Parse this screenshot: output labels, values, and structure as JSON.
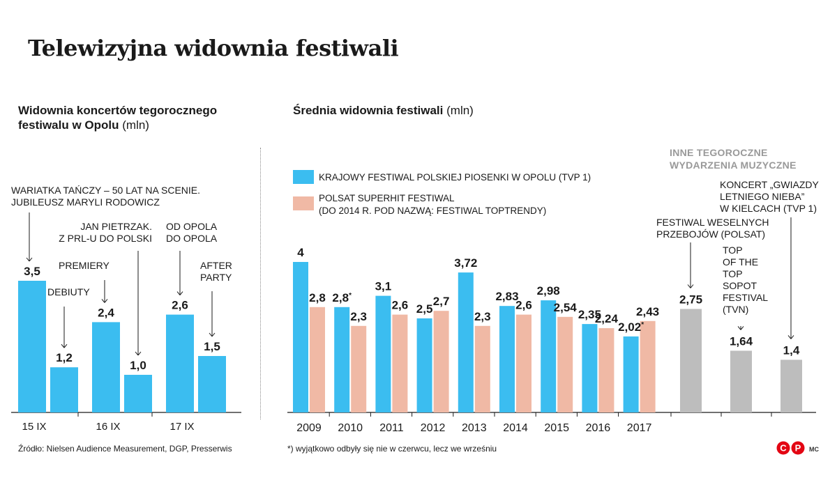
{
  "title": "Telewizyjna widownia festiwali",
  "left_subtitle": {
    "bold": "Widownia koncertów tegorocznego festiwalu w Opolu",
    "unit": "(mln)"
  },
  "right_subtitle": {
    "bold": "Średnia widownia festiwali",
    "unit": "(mln)"
  },
  "legend": [
    {
      "label": [
        "KRAJOWY FESTIWAL POLSKIEJ PIOSENKI W OPOLU (TVP 1)"
      ],
      "color": "#3bbdf0"
    },
    {
      "label": [
        "POLSAT SUPERHIT FESTIWAL",
        "(DO 2014 R. POD NAZWĄ: FESTIWAL TOPTRENDY)"
      ],
      "color": "#f0b9a5"
    }
  ],
  "other_events_title": [
    "INNE TEGOROCZNE",
    "WYDARZENIA MUZYCZNE"
  ],
  "source": "Źródło: Nielsen Audience Measurement, DGP, Presserwis",
  "footnote": "*) wyjątkowo odbyły się nie w czerwcu, lecz we wrześniu",
  "logo": {
    "left": "C",
    "right": "P"
  },
  "credit": "MC",
  "colors": {
    "blue": "#3bbdf0",
    "salmon": "#f0b9a5",
    "gray": "#bdbdbd"
  },
  "chart_data": [
    {
      "type": "bar",
      "title": "Widownia koncertów tegorocznego festiwalu w Opolu",
      "unit": "mln",
      "ylim": [
        0,
        4
      ],
      "categories": [
        "15 IX",
        "16 IX",
        "17 IX"
      ],
      "bars": [
        {
          "category": "15 IX",
          "value": 3.5,
          "label": "3,5",
          "annotation": [
            "WARIATKA TAŃCZY – 50 LAT NA SCENIE.",
            "JUBILEUSZ MARYLI RODOWICZ"
          ]
        },
        {
          "category": "15 IX",
          "value": 1.2,
          "label": "1,2",
          "annotation": [
            "DEBIUTY"
          ]
        },
        {
          "category": "16 IX",
          "value": 2.4,
          "label": "2,4",
          "annotation": [
            "PREMIERY"
          ]
        },
        {
          "category": "16 IX",
          "value": 1.0,
          "label": "1,0",
          "annotation": [
            "JAN PIETRZAK.",
            "Z PRL-U DO POLSKI"
          ]
        },
        {
          "category": "17 IX",
          "value": 2.6,
          "label": "2,6",
          "annotation": [
            "OD OPOLA",
            "DO OPOLA"
          ]
        },
        {
          "category": "17 IX",
          "value": 1.5,
          "label": "1,5",
          "annotation": [
            "AFTER",
            "PARTY"
          ]
        }
      ]
    },
    {
      "type": "bar",
      "title": "Średnia widownia festiwali",
      "unit": "mln",
      "ylim": [
        0,
        4
      ],
      "categories": [
        "2009",
        "2010",
        "2011",
        "2012",
        "2013",
        "2014",
        "2015",
        "2016",
        "2017"
      ],
      "series": [
        {
          "name": "KRAJOWY FESTIWAL POLSKIEJ PIOSENKI W OPOLU (TVP 1)",
          "color": "#3bbdf0",
          "values": [
            4,
            2.8,
            3.1,
            2.5,
            3.72,
            2.83,
            2.98,
            2.35,
            2.02
          ],
          "labels": [
            "4",
            "2,8*",
            "3,1",
            "2,5",
            "3,72",
            "2,83",
            "2,98",
            "2,35",
            "2,02*"
          ]
        },
        {
          "name": "POLSAT SUPERHIT FESTIWAL",
          "color": "#f0b9a5",
          "values": [
            2.8,
            2.3,
            2.6,
            2.7,
            2.3,
            2.6,
            2.54,
            2.24,
            2.43
          ],
          "labels": [
            "2,8",
            "2,3",
            "2,6",
            "2,7",
            "2,3",
            "2,6",
            "2,54",
            "2,24",
            "2,43"
          ]
        }
      ],
      "other_events": [
        {
          "value": 2.75,
          "label": "2,75",
          "annotation": [
            "FESTIWAL WESELNYCH",
            "PRZEBOJÓW (POLSAT)"
          ]
        },
        {
          "value": 1.64,
          "label": "1,64",
          "annotation": [
            "TOP",
            "OF THE",
            "TOP",
            "SOPOT",
            "FESTIVAL",
            "(TVN)"
          ]
        },
        {
          "value": 1.4,
          "label": "1,4",
          "annotation": [
            "KONCERT „GWIAZDY",
            "LETNIEGO NIEBA”",
            "W KIELCACH (TVP 1)"
          ]
        }
      ]
    }
  ]
}
